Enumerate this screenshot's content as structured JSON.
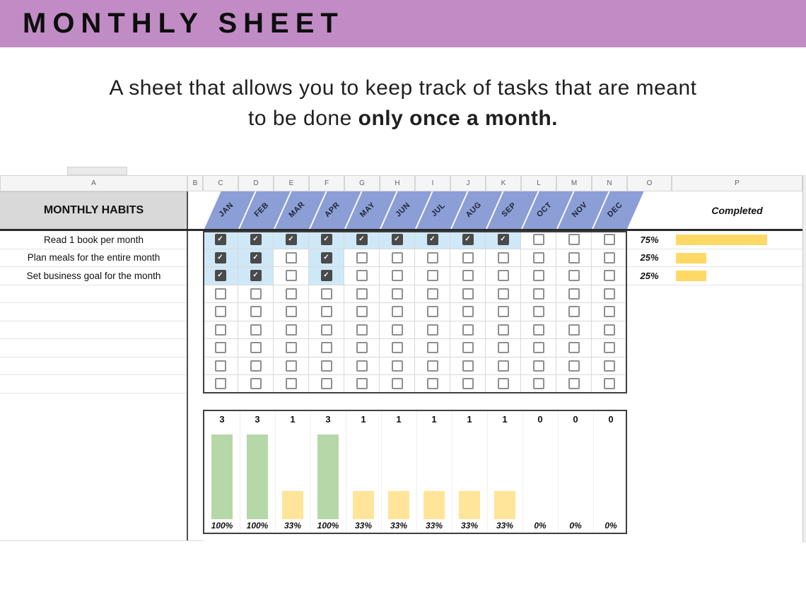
{
  "banner": {
    "title": "MONTHLY SHEET"
  },
  "intro": {
    "line1": "A sheet that allows you to keep track of tasks that are meant",
    "line2_normal": "to be done ",
    "line2_bold": "only once a month."
  },
  "colors": {
    "banner_bg": "#c18cc6",
    "band": "#8c9ed6",
    "highlight": "#cfe8f7",
    "check_fill": "#4a4a4a",
    "check_border": "#8f8f8f",
    "progress": "#ffd966",
    "chart_green": "#b6d7a8",
    "chart_yellow": "#ffe599",
    "gridline": "#d9d9d9"
  },
  "sheet": {
    "column_letters": [
      "A",
      "B",
      "C",
      "D",
      "E",
      "F",
      "G",
      "H",
      "I",
      "J",
      "K",
      "L",
      "M",
      "N",
      "O",
      "P"
    ],
    "table_title": "MONTHLY HABITS",
    "completed_header": "Completed",
    "months": [
      "JAN",
      "FEB",
      "MAR",
      "APR",
      "MAY",
      "JUN",
      "JUL",
      "AUG",
      "SEP",
      "OCT",
      "NOV",
      "DEC"
    ],
    "habits": [
      {
        "label": "Read 1 book per month",
        "checks": [
          1,
          1,
          1,
          1,
          1,
          1,
          1,
          1,
          1,
          0,
          0,
          0
        ],
        "completed": "75%",
        "pct": 75
      },
      {
        "label": "Plan meals for the entire month",
        "checks": [
          1,
          1,
          0,
          1,
          0,
          0,
          0,
          0,
          0,
          0,
          0,
          0
        ],
        "completed": "25%",
        "pct": 25
      },
      {
        "label": "Set business goal for the month",
        "checks": [
          1,
          1,
          0,
          1,
          0,
          0,
          0,
          0,
          0,
          0,
          0,
          0
        ],
        "completed": "25%",
        "pct": 25
      }
    ],
    "empty_row_count": 6
  },
  "chart_data": {
    "type": "bar",
    "categories": [
      "JAN",
      "FEB",
      "MAR",
      "APR",
      "MAY",
      "JUN",
      "JUL",
      "AUG",
      "SEP",
      "OCT",
      "NOV",
      "DEC"
    ],
    "values": [
      3,
      3,
      1,
      3,
      1,
      1,
      1,
      1,
      1,
      0,
      0,
      0
    ],
    "percent_labels": [
      "100%",
      "100%",
      "33%",
      "100%",
      "33%",
      "33%",
      "33%",
      "33%",
      "33%",
      "0%",
      "0%",
      "0%"
    ],
    "value_labels_position": "top",
    "ylim": [
      0,
      3
    ],
    "bar_colors": {
      "value_3": "#b6d7a8",
      "value_1": "#ffe599"
    },
    "legend": "none",
    "grid": "light vertical column separators"
  }
}
